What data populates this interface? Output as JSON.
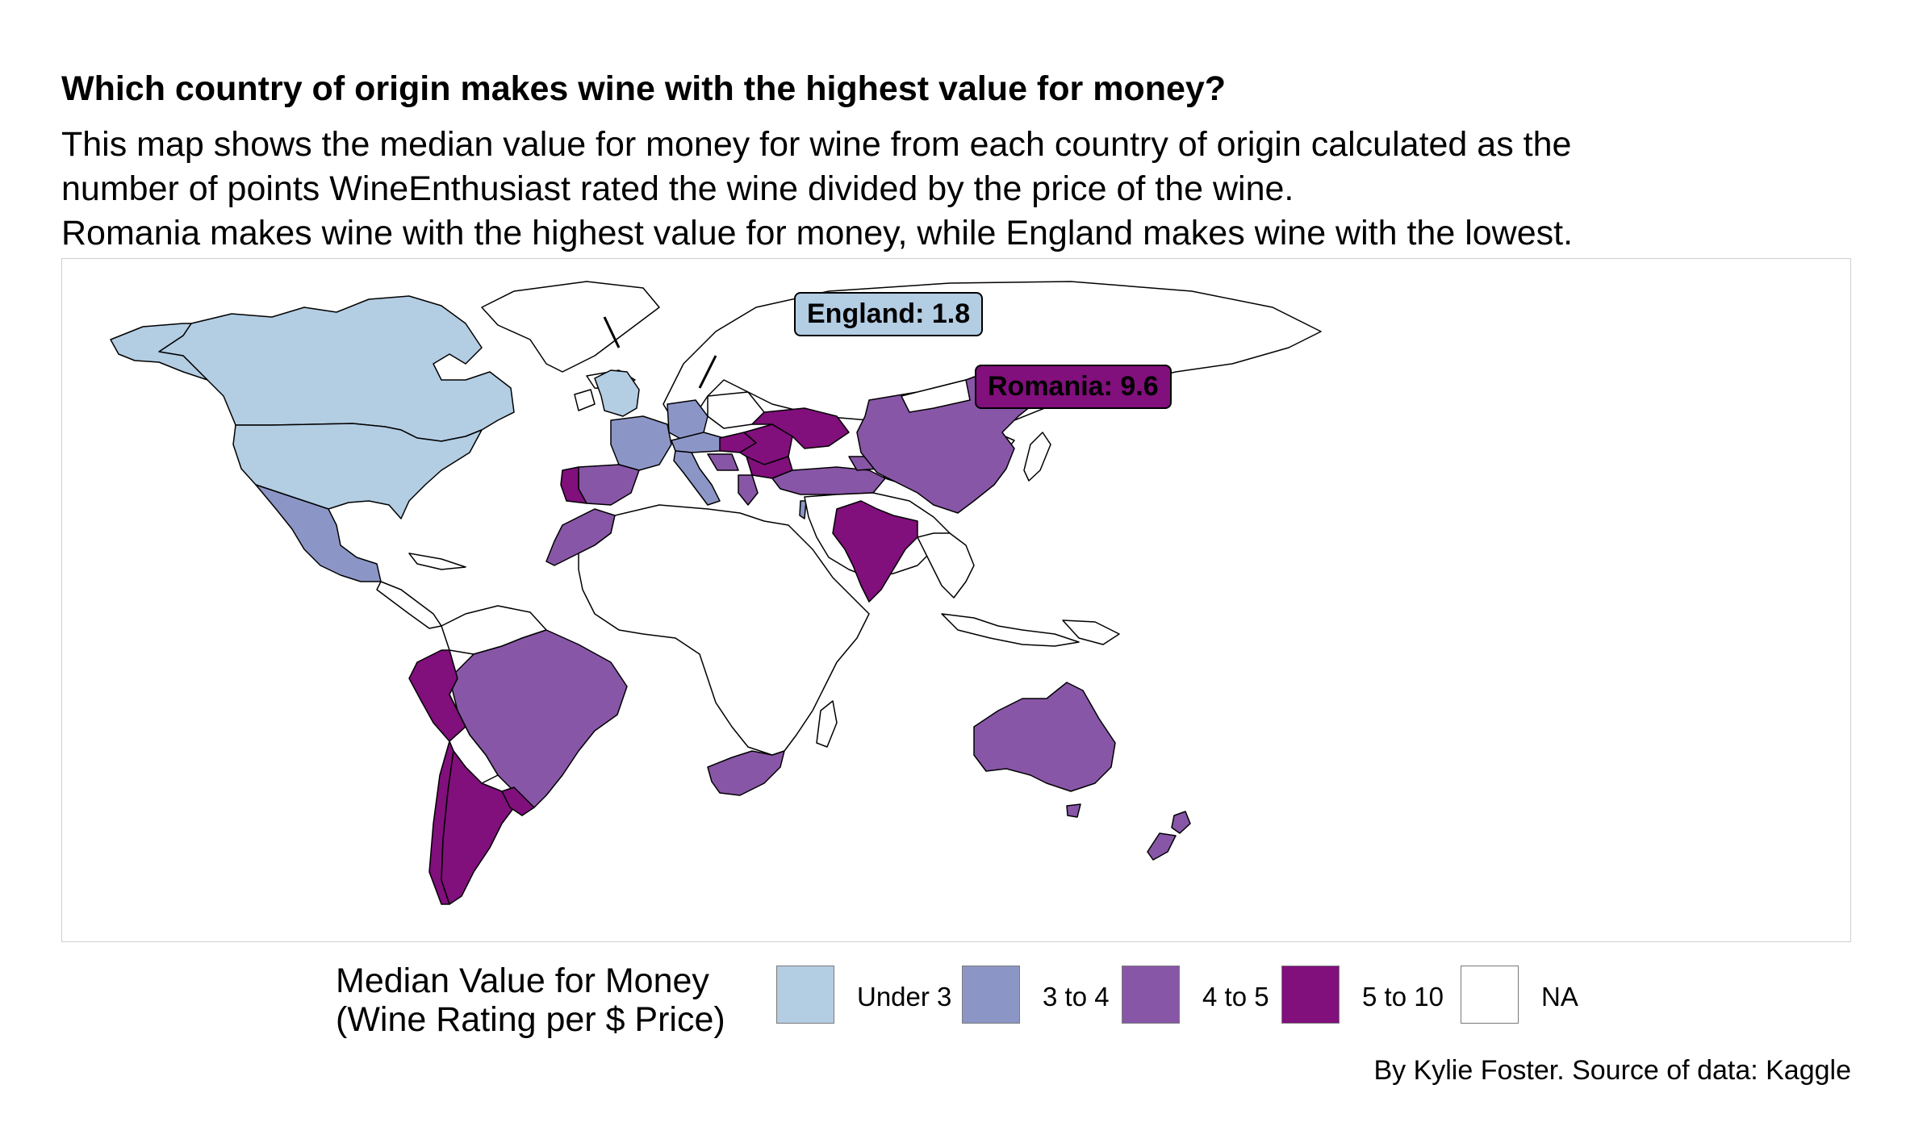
{
  "title": "Which country of origin makes wine with the highest value for money?",
  "subtitle_lines": [
    "This map shows the median value for money for wine from each country of origin calculated as the",
    "number of points WineEnthusiast rated the wine divided by the price of the wine.",
    "Romania makes wine with the highest value for money, while England makes wine with the lowest."
  ],
  "colors": {
    "under_3": "#b3cde3",
    "3_to_4": "#8c96c6",
    "4_to_5": "#8856a7",
    "5_to_10": "#810f7c",
    "na": "#ffffff",
    "border": "#000000"
  },
  "annotations": {
    "england": {
      "text": "England: 1.8",
      "category": "under_3"
    },
    "romania": {
      "text": "Romania: 9.6",
      "category": "5_to_10"
    }
  },
  "legend": {
    "title_lines": [
      "Median Value for Money",
      "(Wine Rating per $ Price)"
    ],
    "items": [
      {
        "label": "Under 3",
        "key": "under_3"
      },
      {
        "label": "3 to 4",
        "key": "3_to_4"
      },
      {
        "label": "4 to 5",
        "key": "4_to_5"
      },
      {
        "label": "5 to 10",
        "key": "5_to_10"
      },
      {
        "label": "NA",
        "key": "na"
      }
    ]
  },
  "caption": "By Kylie Foster. Source of data: Kaggle",
  "countries": [
    {
      "name": "Canada",
      "category": "under_3"
    },
    {
      "name": "United States",
      "category": "under_3"
    },
    {
      "name": "England",
      "category": "under_3"
    },
    {
      "name": "Mexico",
      "category": "3_to_4"
    },
    {
      "name": "France",
      "category": "3_to_4"
    },
    {
      "name": "Germany",
      "category": "3_to_4"
    },
    {
      "name": "Austria",
      "category": "3_to_4"
    },
    {
      "name": "Italy",
      "category": "3_to_4"
    },
    {
      "name": "Switzerland",
      "category": "3_to_4"
    },
    {
      "name": "Israel",
      "category": "3_to_4"
    },
    {
      "name": "Spain",
      "category": "4_to_5"
    },
    {
      "name": "Morocco",
      "category": "4_to_5"
    },
    {
      "name": "Turkey",
      "category": "4_to_5"
    },
    {
      "name": "Greece",
      "category": "4_to_5"
    },
    {
      "name": "Croatia",
      "category": "4_to_5"
    },
    {
      "name": "Brazil",
      "category": "4_to_5"
    },
    {
      "name": "China",
      "category": "4_to_5"
    },
    {
      "name": "Australia",
      "category": "4_to_5"
    },
    {
      "name": "New Zealand",
      "category": "4_to_5"
    },
    {
      "name": "South Africa",
      "category": "4_to_5"
    },
    {
      "name": "Georgia",
      "category": "4_to_5"
    },
    {
      "name": "Romania",
      "category": "5_to_10"
    },
    {
      "name": "Ukraine",
      "category": "5_to_10"
    },
    {
      "name": "Moldova",
      "category": "5_to_10"
    },
    {
      "name": "Bulgaria",
      "category": "5_to_10"
    },
    {
      "name": "Hungary",
      "category": "5_to_10"
    },
    {
      "name": "Portugal",
      "category": "5_to_10"
    },
    {
      "name": "India",
      "category": "5_to_10"
    },
    {
      "name": "Peru",
      "category": "5_to_10"
    },
    {
      "name": "Chile",
      "category": "5_to_10"
    },
    {
      "name": "Argentina",
      "category": "5_to_10"
    },
    {
      "name": "Uruguay",
      "category": "5_to_10"
    }
  ]
}
